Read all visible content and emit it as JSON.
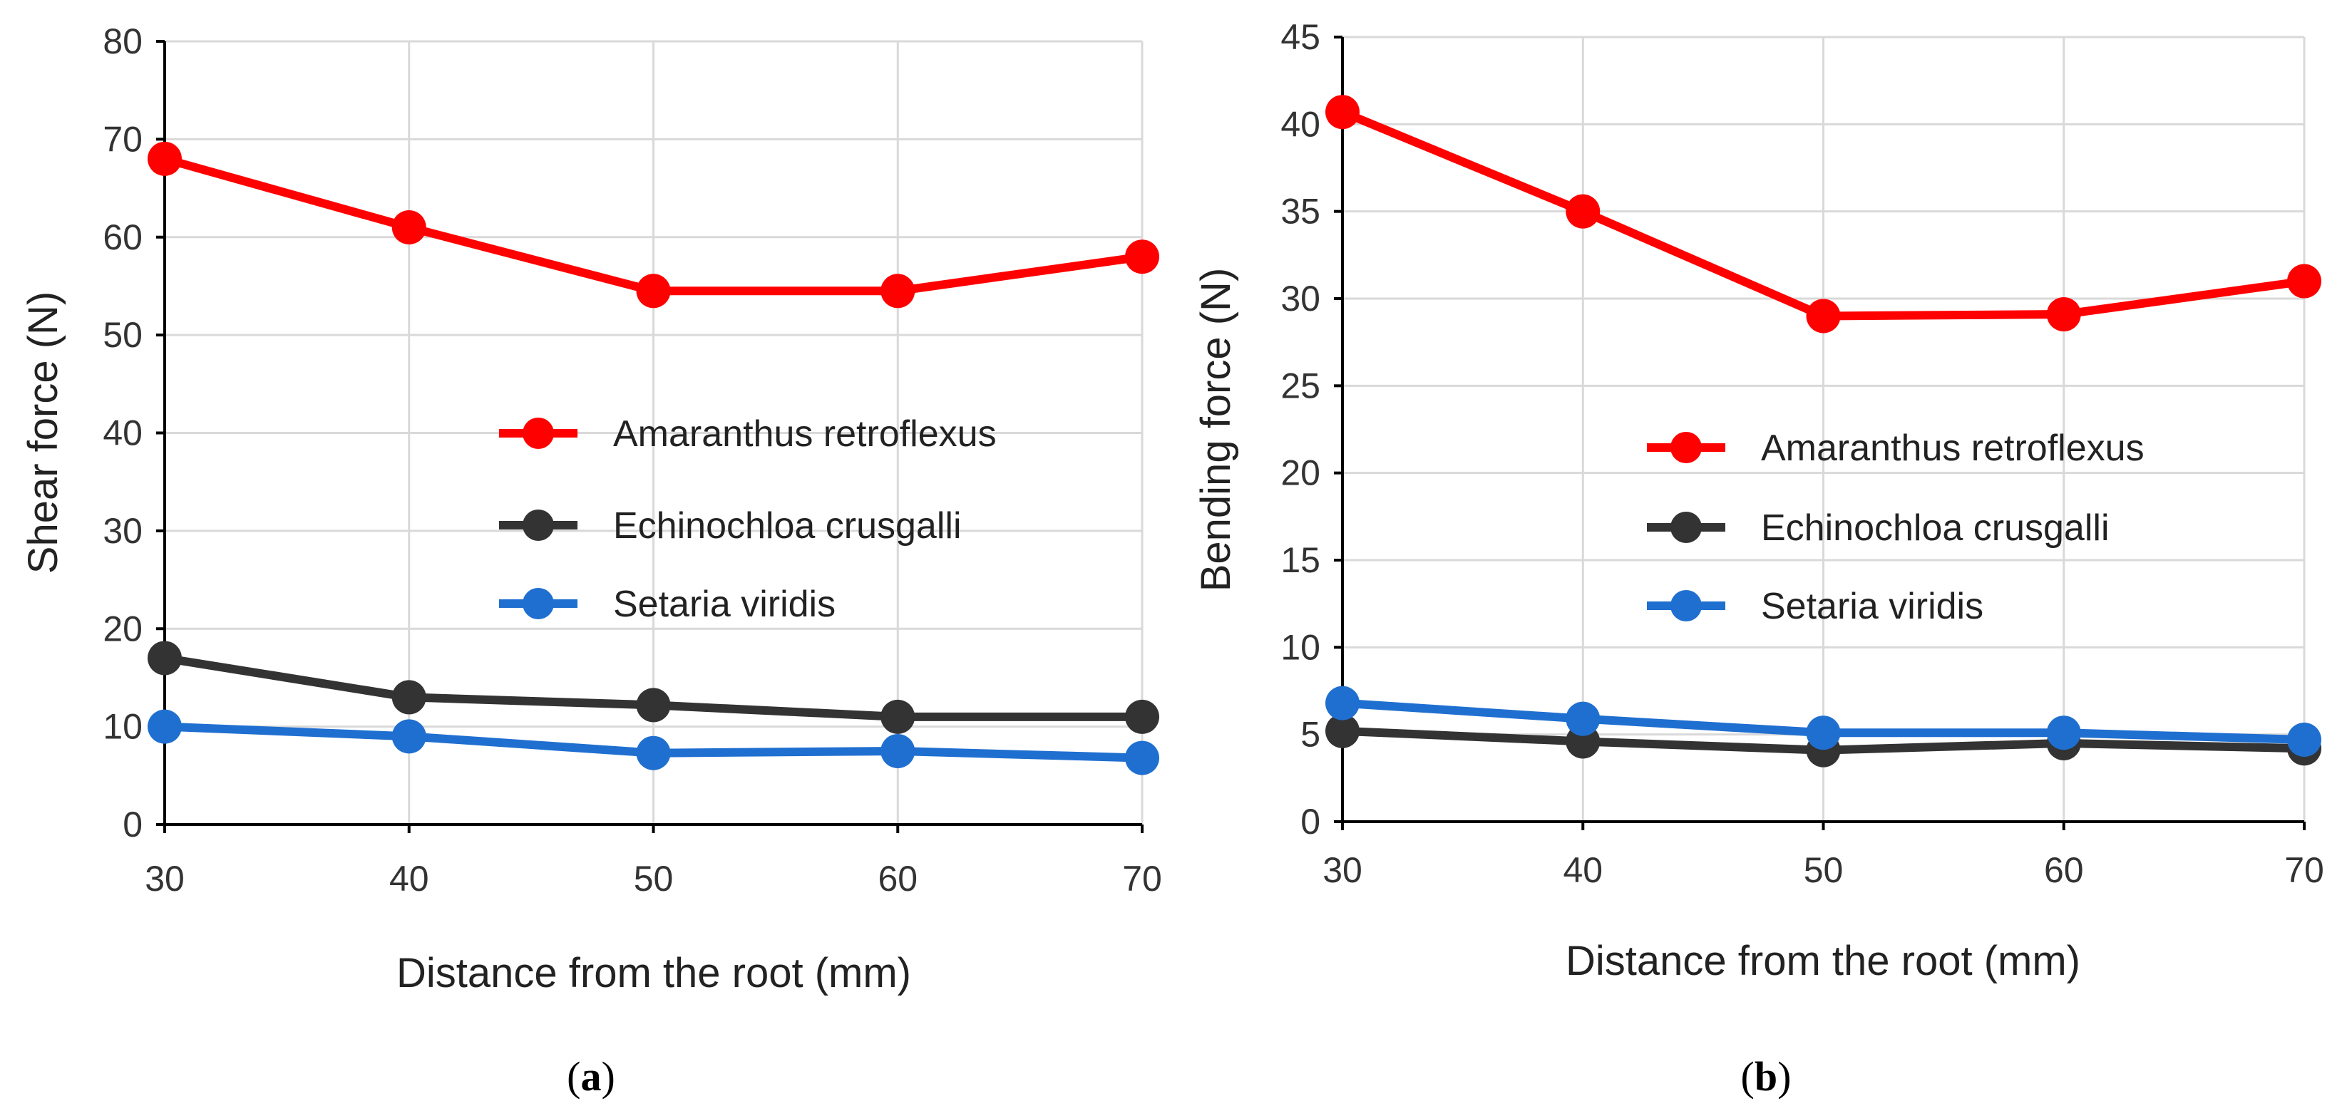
{
  "chart_data": [
    {
      "type": "line",
      "caption_open": "(",
      "caption_letter": "a",
      "caption_close": ")",
      "xlabel": "Distance from the root (mm)",
      "ylabel": "Shear force (N)",
      "x": [
        30,
        40,
        50,
        60,
        70
      ],
      "xlim": [
        30,
        70
      ],
      "ylim": [
        0,
        80
      ],
      "yticks": [
        0,
        10,
        20,
        30,
        40,
        50,
        60,
        70,
        80
      ],
      "grid": true,
      "legend_position": "center-right",
      "series": [
        {
          "name": "Amaranthus retroflexus",
          "color": "#ff0000",
          "values": [
            68,
            61,
            54.5,
            54.5,
            58
          ]
        },
        {
          "name": "Echinochloa crusgalli",
          "color": "#333333",
          "values": [
            17,
            13,
            12.2,
            11,
            11
          ]
        },
        {
          "name": "Setaria viridis",
          "color": "#1f6fd0",
          "values": [
            10,
            9,
            7.3,
            7.5,
            6.8
          ]
        }
      ]
    },
    {
      "type": "line",
      "caption_open": "(",
      "caption_letter": "b",
      "caption_close": ")",
      "xlabel": "Distance from the root (mm)",
      "ylabel": "Bending force (N)",
      "x": [
        30,
        40,
        50,
        60,
        70
      ],
      "xlim": [
        30,
        70
      ],
      "ylim": [
        0,
        45
      ],
      "yticks": [
        0,
        5,
        10,
        15,
        20,
        25,
        30,
        35,
        40,
        45
      ],
      "grid": true,
      "legend_position": "center-right",
      "series": [
        {
          "name": "Amaranthus retroflexus",
          "color": "#ff0000",
          "values": [
            40.7,
            35,
            29,
            29.1,
            31
          ]
        },
        {
          "name": "Echinochloa crusgalli",
          "color": "#333333",
          "values": [
            5.2,
            4.6,
            4.1,
            4.5,
            4.2
          ]
        },
        {
          "name": "Setaria viridis",
          "color": "#1f6fd0",
          "values": [
            6.8,
            5.9,
            5.1,
            5.1,
            4.7
          ]
        }
      ]
    }
  ]
}
